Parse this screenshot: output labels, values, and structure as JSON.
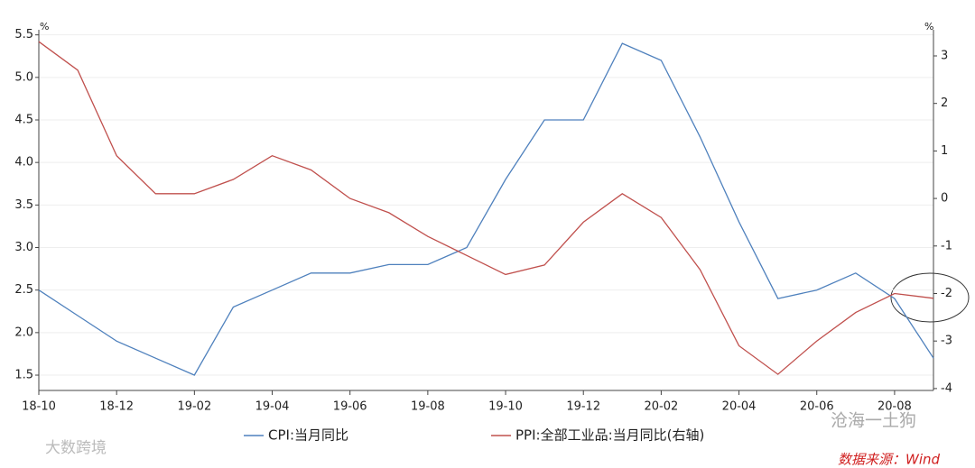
{
  "chart_data": {
    "type": "line",
    "categories": [
      "18-10",
      null,
      "18-12",
      null,
      "19-02",
      null,
      "19-04",
      null,
      "19-06",
      null,
      "19-08",
      null,
      "19-10",
      null,
      "19-12",
      null,
      "20-02",
      null,
      "20-04",
      null,
      "20-06",
      null,
      "20-08",
      null
    ],
    "series": [
      {
        "name": "CPI:当月同比",
        "color": "#4f81bd",
        "axis": "y",
        "values": [
          2.5,
          2.2,
          1.9,
          1.7,
          1.5,
          2.3,
          2.5,
          2.7,
          2.7,
          2.8,
          2.8,
          3.0,
          3.8,
          4.5,
          4.5,
          5.4,
          5.2,
          4.3,
          3.3,
          2.4,
          2.5,
          2.7,
          2.4,
          1.7
        ]
      },
      {
        "name": "PPI:全部工业品:当月同比(右轴)",
        "color": "#c0504d",
        "axis": "y2",
        "values": [
          3.3,
          2.7,
          0.9,
          0.1,
          0.1,
          0.4,
          0.9,
          0.6,
          0.0,
          -0.3,
          -0.8,
          -1.2,
          -1.6,
          -1.4,
          -0.5,
          0.1,
          -0.4,
          -1.5,
          -3.1,
          -3.7,
          -3.0,
          -2.4,
          -2.0,
          -2.1
        ]
      }
    ],
    "y_unit": "%",
    "y2_unit": "%",
    "ylim": [
      1.32,
      5.56
    ],
    "yticks": [
      1.5,
      {
        "value": 2,
        "label": "2.0"
      },
      2.5,
      {
        "value": 3,
        "label": "3.0"
      },
      3.5,
      {
        "value": 4,
        "label": "4.0"
      },
      4.5,
      {
        "value": 5,
        "label": "5.0"
      },
      5.5
    ],
    "y2lim": [
      -4.04,
      3.55
    ],
    "y2ticks": [
      -4,
      -3,
      -2,
      -1,
      0,
      1,
      2,
      3
    ],
    "grid": true,
    "annotations": [
      "大数跨境",
      "沧海一土狗",
      "数据来源：Wind"
    ]
  }
}
